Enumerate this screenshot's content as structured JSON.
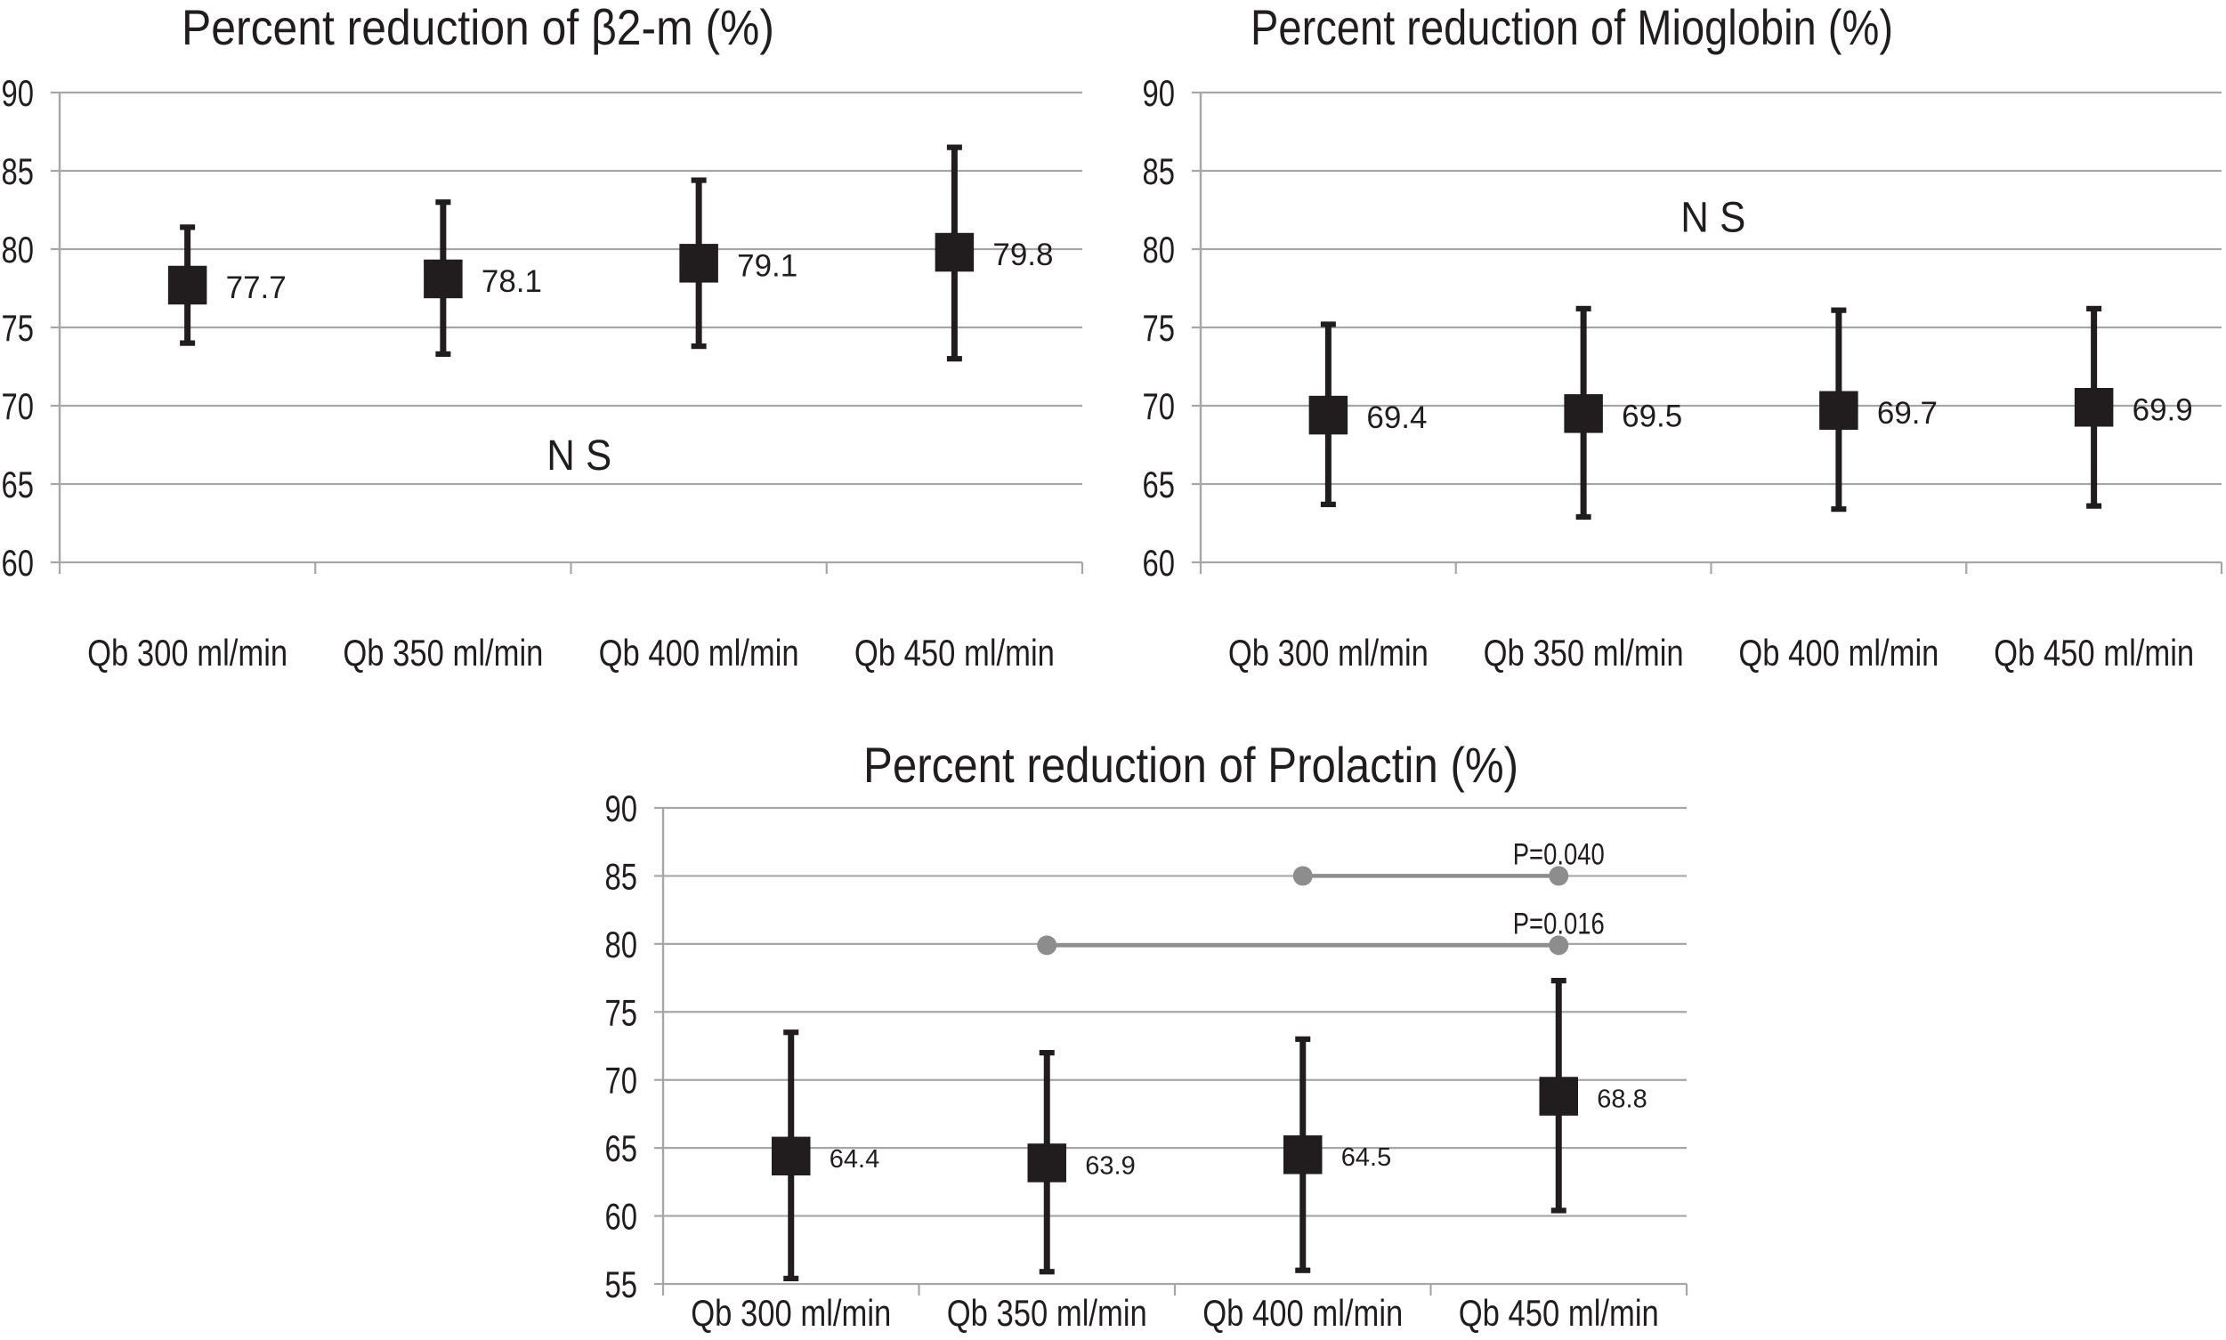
{
  "figure": {
    "type": "scientific-figure",
    "description": "Three mean/error-bar panels of percent reduction versus blood flow rate (Qb)",
    "background": "#ffffff"
  },
  "colors": {
    "ink": "#211d1e",
    "grid": "#a6a6a6",
    "significance": "#8d8d8d",
    "background": "#ffffff"
  },
  "chart_data": [
    {
      "id": "beta2m",
      "type": "scatter",
      "subtype": "mean-errorbar",
      "title": "Percent reduction of β2-m (%)",
      "xlabel": "",
      "ylabel": "",
      "categories": [
        "Qb 300 ml/min",
        "Qb 350 ml/min",
        "Qb 400 ml/min",
        "Qb 450 ml/min"
      ],
      "points": [
        {
          "category": "Qb 300 ml/min",
          "mean": 77.7,
          "label": "77.7",
          "upper": 81.4,
          "lower": 74.0
        },
        {
          "category": "Qb 350 ml/min",
          "mean": 78.1,
          "label": "78.1",
          "upper": 83.0,
          "lower": 73.3
        },
        {
          "category": "Qb 400 ml/min",
          "mean": 79.1,
          "label": "79.1",
          "upper": 84.4,
          "lower": 73.8
        },
        {
          "category": "Qb 450 ml/min",
          "mean": 79.8,
          "label": "79.8",
          "upper": 86.5,
          "lower": 73.0
        }
      ],
      "ylim": [
        60,
        90
      ],
      "yticks": [
        60,
        65,
        70,
        75,
        80,
        85,
        90
      ],
      "grid": true,
      "legend": "none",
      "annotations": [
        {
          "text": "N S",
          "x_frac": 0.508,
          "y_value": 67.0
        }
      ],
      "significance": []
    },
    {
      "id": "mioglobin",
      "type": "scatter",
      "subtype": "mean-errorbar",
      "title": "Percent reduction of Mioglobin (%)",
      "xlabel": "",
      "ylabel": "",
      "categories": [
        "Qb 300 ml/min",
        "Qb 350 ml/min",
        "Qb 400 ml/min",
        "Qb 450 ml/min"
      ],
      "points": [
        {
          "category": "Qb 300 ml/min",
          "mean": 69.4,
          "label": "69.4",
          "upper": 75.2,
          "lower": 63.7
        },
        {
          "category": "Qb 350 ml/min",
          "mean": 69.5,
          "label": "69.5",
          "upper": 76.2,
          "lower": 62.9
        },
        {
          "category": "Qb 400 ml/min",
          "mean": 69.7,
          "label": "69.7",
          "upper": 76.1,
          "lower": 63.4
        },
        {
          "category": "Qb 450 ml/min",
          "mean": 69.9,
          "label": "69.9",
          "upper": 76.2,
          "lower": 63.6
        }
      ],
      "ylim": [
        60,
        90
      ],
      "yticks": [
        60,
        65,
        70,
        75,
        80,
        85,
        90
      ],
      "grid": true,
      "legend": "none",
      "annotations": [
        {
          "text": "N S",
          "x_frac": 0.502,
          "y_value": 82.2
        }
      ],
      "significance": []
    },
    {
      "id": "prolactin",
      "type": "scatter",
      "subtype": "mean-errorbar",
      "title": "Percent reduction of Prolactin (%)",
      "xlabel": "",
      "ylabel": "",
      "categories": [
        "Qb 300 ml/min",
        "Qb 350 ml/min",
        "Qb 400 ml/min",
        "Qb 450 ml/min"
      ],
      "points": [
        {
          "category": "Qb 300 ml/min",
          "mean": 64.4,
          "label": "64.4",
          "upper": 73.5,
          "lower": 55.4
        },
        {
          "category": "Qb 350 ml/min",
          "mean": 63.9,
          "label": "63.9",
          "upper": 72.0,
          "lower": 55.9
        },
        {
          "category": "Qb 400 ml/min",
          "mean": 64.5,
          "label": "64.5",
          "upper": 73.0,
          "lower": 56.0
        },
        {
          "category": "Qb 450 ml/min",
          "mean": 68.8,
          "label": "68.8",
          "upper": 77.3,
          "lower": 60.4
        }
      ],
      "ylim": [
        55,
        90
      ],
      "yticks": [
        55,
        60,
        65,
        70,
        75,
        80,
        85,
        90
      ],
      "grid": true,
      "legend": "none",
      "annotations": [],
      "significance": [
        {
          "label": "P=0.040",
          "from": "Qb 400 ml/min",
          "to": "Qb 450 ml/min",
          "from_index": 2,
          "to_index": 3,
          "y_value": 85.0
        },
        {
          "label": "P=0.016",
          "from": "Qb 350 ml/min",
          "to": "Qb 450 ml/min",
          "from_index": 1,
          "to_index": 3,
          "y_value": 79.9
        }
      ]
    }
  ]
}
